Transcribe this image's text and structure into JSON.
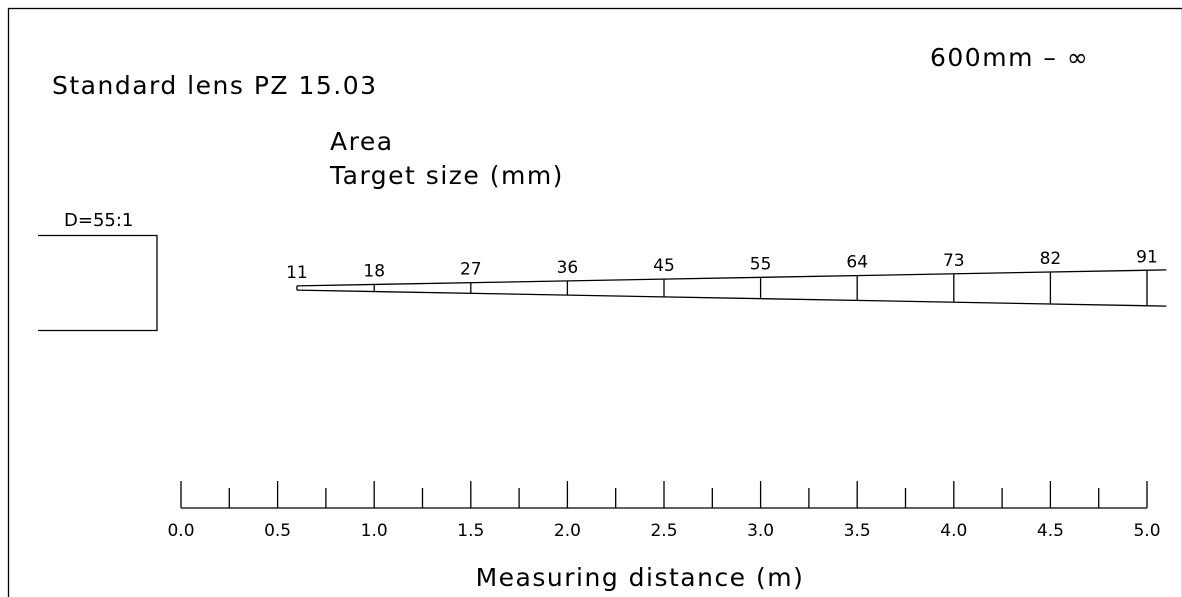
{
  "title": "Standard lens PZ 15.03",
  "focus_range": "600mm – ∞",
  "beam_label_line1": "Area",
  "beam_label_line2": "Target size (mm)",
  "optics_ratio": "D=55:1",
  "xlabel": "Measuring distance (m)",
  "chart_data": {
    "type": "line",
    "title": "Standard lens PZ 15.03",
    "subtitle": "600mm – ∞",
    "xlabel": "Measuring distance (m)",
    "ylabel": "Target size (mm)",
    "x_ticks": [
      "0.0",
      "0.5",
      "1.0",
      "1.5",
      "2.0",
      "2.5",
      "3.0",
      "3.5",
      "4.0",
      "4.5",
      "5.0"
    ],
    "xlim": [
      0,
      5
    ],
    "series": [
      {
        "x": [
          0.6,
          1.0,
          1.5,
          2.0,
          2.5,
          3.0,
          3.5,
          4.0,
          4.5,
          5.0
        ],
        "values": [
          11,
          18,
          27,
          36,
          45,
          55,
          64,
          73,
          82,
          91
        ]
      }
    ],
    "legend": "none",
    "grid": false
  }
}
